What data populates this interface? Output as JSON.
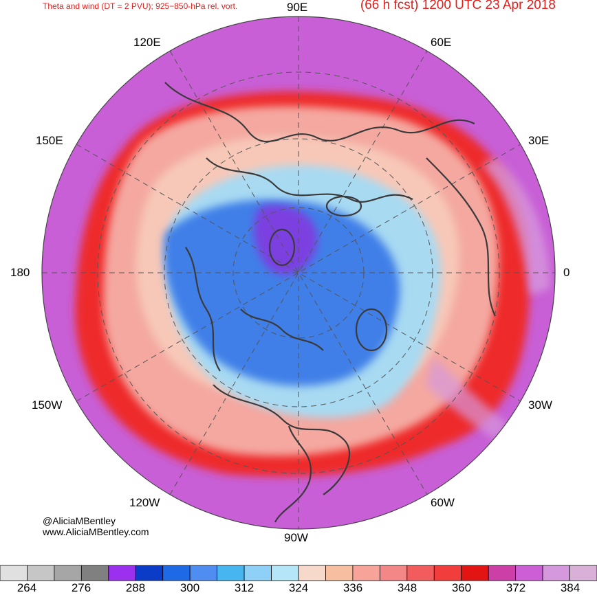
{
  "header": {
    "title_left": "Theta and wind (DT = 2 PVU); 925−850-hPa rel. vort.",
    "title_right": "(66 h fcst) 1200 UTC 23 Apr 2018"
  },
  "map": {
    "projection": "north-polar-stereographic",
    "longitude_labels": {
      "top": "90E",
      "upper_left": "120E",
      "upper_right": "60E",
      "left_upper": "150E",
      "right_upper": "30E",
      "left": "180",
      "right": "0",
      "left_lower": "150W",
      "right_lower": "30W",
      "lower_left": "120W",
      "lower_right": "60W",
      "bottom": "90W"
    },
    "field_colors": {
      "outer": "#c85fd6",
      "warm": "#f4a8a0",
      "hot": "#ee2020",
      "cool": "#a8daf2",
      "cold": "#3f7fe8",
      "coldest": "#7b3fe0"
    }
  },
  "credits": {
    "handle": "@AliciaMBentley",
    "website": "www.AliciaMBentley.com"
  },
  "colorbar": {
    "colors": [
      "#e0e0e0",
      "#c6c6c6",
      "#a6a6a6",
      "#808080",
      "#9b30ef",
      "#0a3cc8",
      "#1e6ae6",
      "#4f8df0",
      "#47b5f0",
      "#8fd0f7",
      "#b4e6f7",
      "#f7d9cb",
      "#f7be9f",
      "#f7a39a",
      "#f38686",
      "#f25c5c",
      "#f23d3d",
      "#e31414",
      "#cc3fa6",
      "#cc5fd6",
      "#d698dd",
      "#d8b0d8"
    ],
    "tick_labels": [
      "264",
      "276",
      "288",
      "300",
      "312",
      "324",
      "336",
      "348",
      "360",
      "372",
      "384"
    ]
  }
}
